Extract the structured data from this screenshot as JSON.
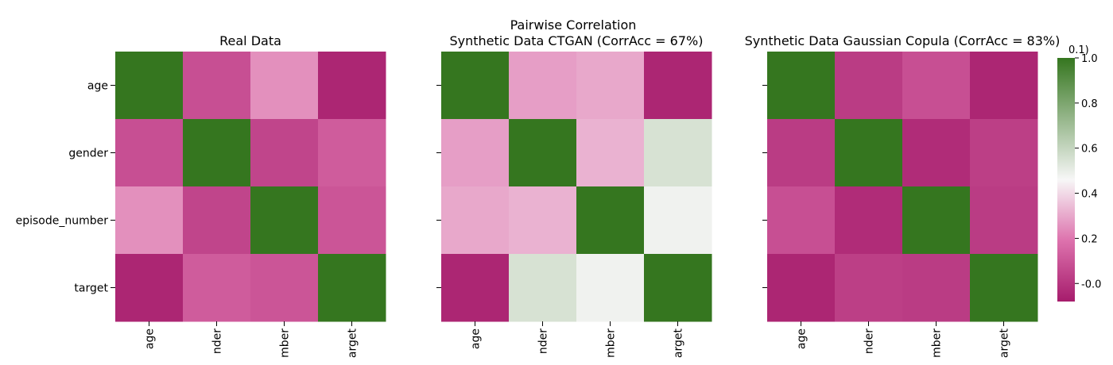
{
  "suptitle": "Pairwise Correlation",
  "chart_data": [
    {
      "type": "heatmap",
      "title": "Real Data",
      "rows": [
        "age",
        "gender",
        "episode_number",
        "target"
      ],
      "cols": [
        "age",
        "nder",
        "mber",
        "arget"
      ],
      "values": [
        [
          1.0,
          0.08,
          0.25,
          -0.05
        ],
        [
          0.08,
          1.0,
          0.05,
          0.12
        ],
        [
          0.25,
          0.05,
          1.0,
          0.1
        ],
        [
          -0.05,
          0.12,
          0.1,
          1.0
        ]
      ]
    },
    {
      "type": "heatmap",
      "title": "Synthetic Data CTGAN (CorrAcc = 67%)",
      "rows": [
        "age",
        "gender",
        "episode_number",
        "target"
      ],
      "cols": [
        "age",
        "nder",
        "mber",
        "arget"
      ],
      "values": [
        [
          1.0,
          0.28,
          0.3,
          -0.05
        ],
        [
          0.28,
          1.0,
          0.32,
          0.55
        ],
        [
          0.3,
          0.32,
          1.0,
          0.48
        ],
        [
          -0.05,
          0.55,
          0.48,
          1.0
        ]
      ]
    },
    {
      "type": "heatmap",
      "title": "Synthetic Data Gaussian Copula (CorrAcc = 83%)",
      "rows": [
        "age",
        "gender",
        "episode_number",
        "target"
      ],
      "cols": [
        "age",
        "nder",
        "mber",
        "arget"
      ],
      "values": [
        [
          1.0,
          0.02,
          0.08,
          -0.05
        ],
        [
          0.02,
          1.0,
          -0.03,
          0.03
        ],
        [
          0.08,
          -0.03,
          1.0,
          0.02
        ],
        [
          -0.05,
          0.03,
          0.02,
          1.0
        ]
      ]
    }
  ],
  "colorbar": {
    "ticks": [
      "-0.0",
      "0.2",
      "0.4",
      "0.6",
      "0.8",
      "1.0"
    ],
    "vmin": -0.08,
    "vmax": 1.0,
    "cutoff_label": "0.1)"
  },
  "colors": {
    "low": "#a61c6c",
    "mid_low": "#dd72ad",
    "mid": "#f7f7f7",
    "high": "#35761f"
  }
}
